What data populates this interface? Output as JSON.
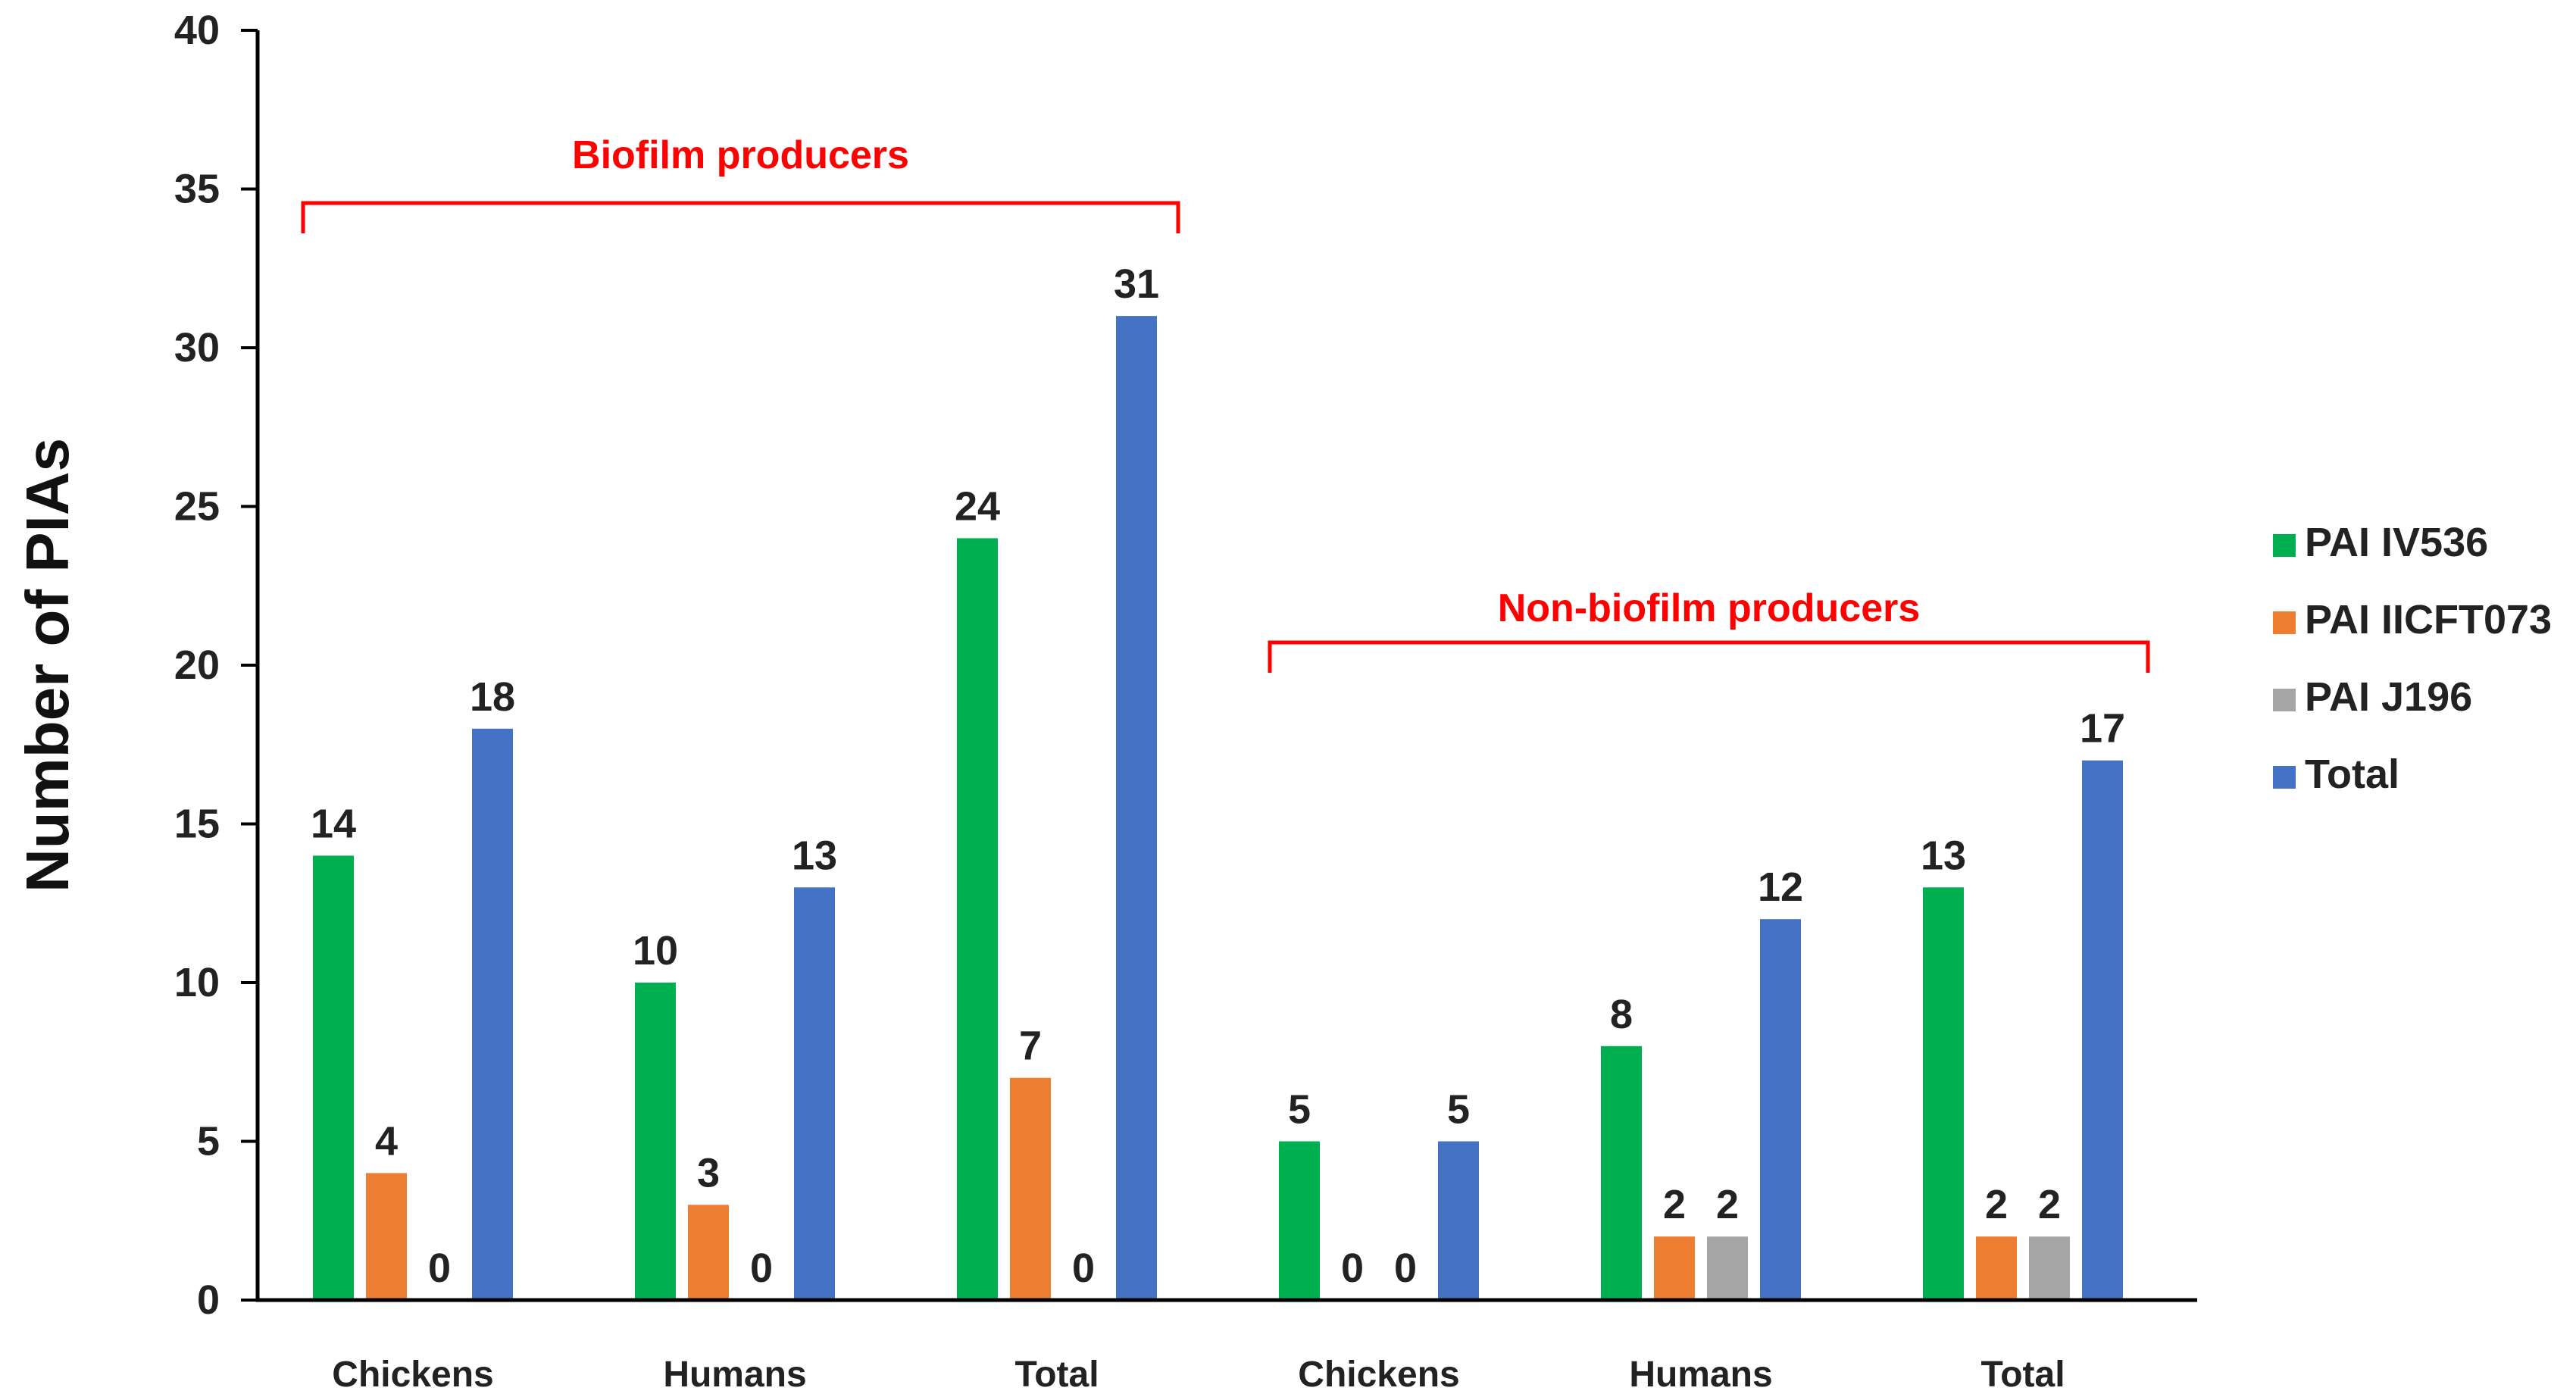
{
  "chart_data": {
    "type": "bar",
    "ylabel": "Number of PIAs",
    "xlabel": "",
    "ylim": [
      0,
      40
    ],
    "yticks": [
      0,
      5,
      10,
      15,
      20,
      25,
      30,
      35,
      40
    ],
    "categories": [
      "Chickens",
      "Humans",
      "Total",
      "Chickens",
      "Humans",
      "Total"
    ],
    "groups": [
      {
        "label": "Biofilm producers",
        "categories": [
          0,
          1,
          2
        ]
      },
      {
        "label": "Non-biofilm producers",
        "categories": [
          3,
          4,
          5
        ]
      }
    ],
    "series": [
      {
        "name": "PAI IV536",
        "color": "#00b050",
        "values": [
          14,
          10,
          24,
          5,
          8,
          13
        ]
      },
      {
        "name": "PAI IICFT073",
        "color": "#ed7d31",
        "values": [
          4,
          3,
          7,
          0,
          2,
          2
        ]
      },
      {
        "name": "PAI J196",
        "color": "#a5a5a5",
        "values": [
          0,
          0,
          0,
          0,
          2,
          2
        ]
      },
      {
        "name": "Total",
        "color": "#4472c4",
        "values": [
          18,
          13,
          31,
          5,
          12,
          17
        ]
      }
    ],
    "data_labels": [
      [
        "14",
        "4",
        "0",
        "18"
      ],
      [
        "10",
        "3",
        "0",
        "13"
      ],
      [
        "24",
        "7",
        "0",
        "31"
      ],
      [
        "5",
        "0",
        "0",
        "5"
      ],
      [
        "8",
        "2",
        "2",
        "12"
      ],
      [
        "13",
        "2",
        "2",
        "17"
      ]
    ],
    "group_label_color": "#ff0000",
    "legend_position": "right",
    "grid": false
  }
}
